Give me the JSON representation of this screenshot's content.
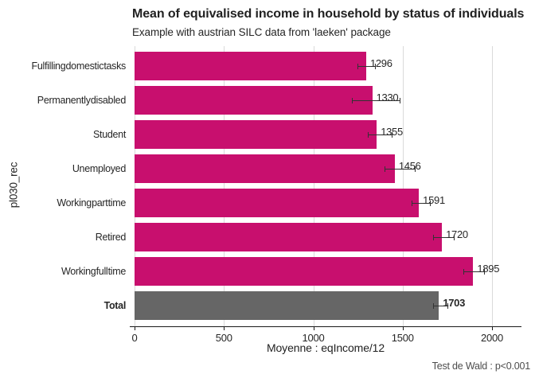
{
  "colors": {
    "bar": "#C80F6E",
    "total_bar": "#666666",
    "grid": "#DADADA",
    "axis": "#1A1A1A",
    "error_bar": "#333333",
    "text": "#262626",
    "caption_text": "#4D4D4D"
  },
  "chart_data": {
    "type": "bar",
    "orientation": "horizontal",
    "title": "Mean of equivalised income in household by status of individuals",
    "subtitle": "Example with austrian SILC data from 'laeken' package",
    "xlabel": "Moyenne : eqIncome/12",
    "ylabel": "pl030_rec",
    "caption": "Test de Wald : p<0.001",
    "categories": [
      "Fulfilling domestic tasks",
      "Permanently disabled",
      "Student",
      "Unemployed",
      "Working part time",
      "Retired",
      "Working full time",
      "Total"
    ],
    "values": [
      1296,
      1330,
      1355,
      1456,
      1591,
      1720,
      1895,
      1703
    ],
    "value_labels": [
      "1296",
      "1330",
      "1355",
      "1456",
      "1591",
      "1720",
      "1895",
      "1703"
    ],
    "ci_low": [
      1245,
      1218,
      1306,
      1398,
      1551,
      1670,
      1838,
      1672
    ],
    "ci_high": [
      1350,
      1487,
      1443,
      1574,
      1658,
      1790,
      1962,
      1753
    ],
    "total_category": "Total",
    "bar_colors": {
      "default": "#C80F6E",
      "Total": "#666666"
    },
    "xticks": [
      0,
      500,
      1000,
      1500,
      2000
    ],
    "xlim": [
      0,
      2165
    ],
    "grid": "vertical-major-only",
    "legend": "none"
  }
}
